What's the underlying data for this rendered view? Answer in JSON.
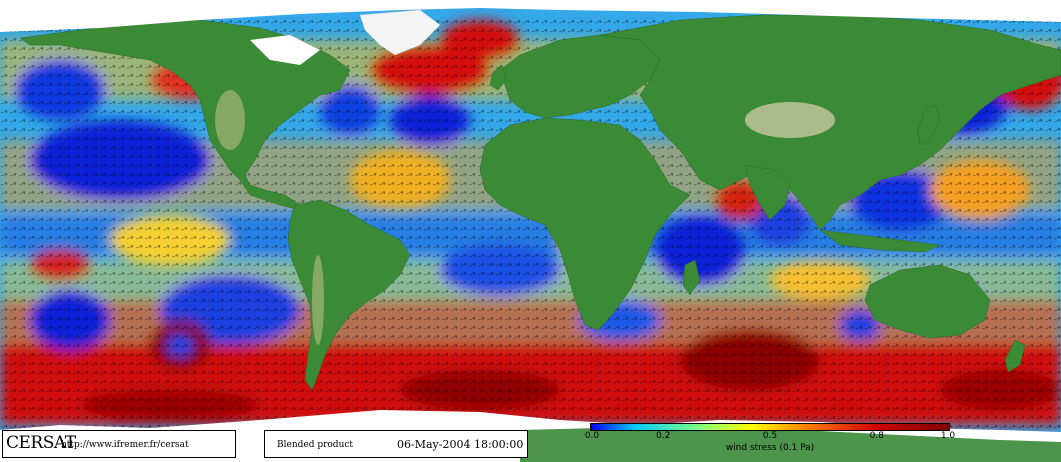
{
  "map": {
    "type": "global wind stress field",
    "projection": "equirectangular",
    "arrows": "wind vectors overlay",
    "colors": {
      "land_dark": "#2e7a2e",
      "land_mid": "#4a9a42",
      "land_high": "#c9c7a0",
      "ice": "#ffffff",
      "ocean_low": "#0a1fd6",
      "ocean_mid": "#20c8e8",
      "ocean_mid2": "#f2e030",
      "ocean_high": "#d41010",
      "ocean_very_high": "#8a0000"
    }
  },
  "footer": {
    "logo": "CERSAT",
    "url": "http://www.ifremer.fr/cersat",
    "product": "Blended product",
    "date": "06-May-2004 18:00:00"
  },
  "colorbar": {
    "ticks": [
      "0.0",
      "0.2",
      "0.5",
      "0.8",
      "1.0"
    ],
    "tick_values": [
      0.0,
      0.2,
      0.5,
      0.8,
      1.0
    ],
    "range": [
      0.0,
      1.0
    ],
    "label": "wind stress (0.1 Pa)",
    "gradient": [
      "#0000ff",
      "#00c8ff",
      "#80ff80",
      "#ffff00",
      "#ff8000",
      "#d00000",
      "#800000"
    ]
  }
}
